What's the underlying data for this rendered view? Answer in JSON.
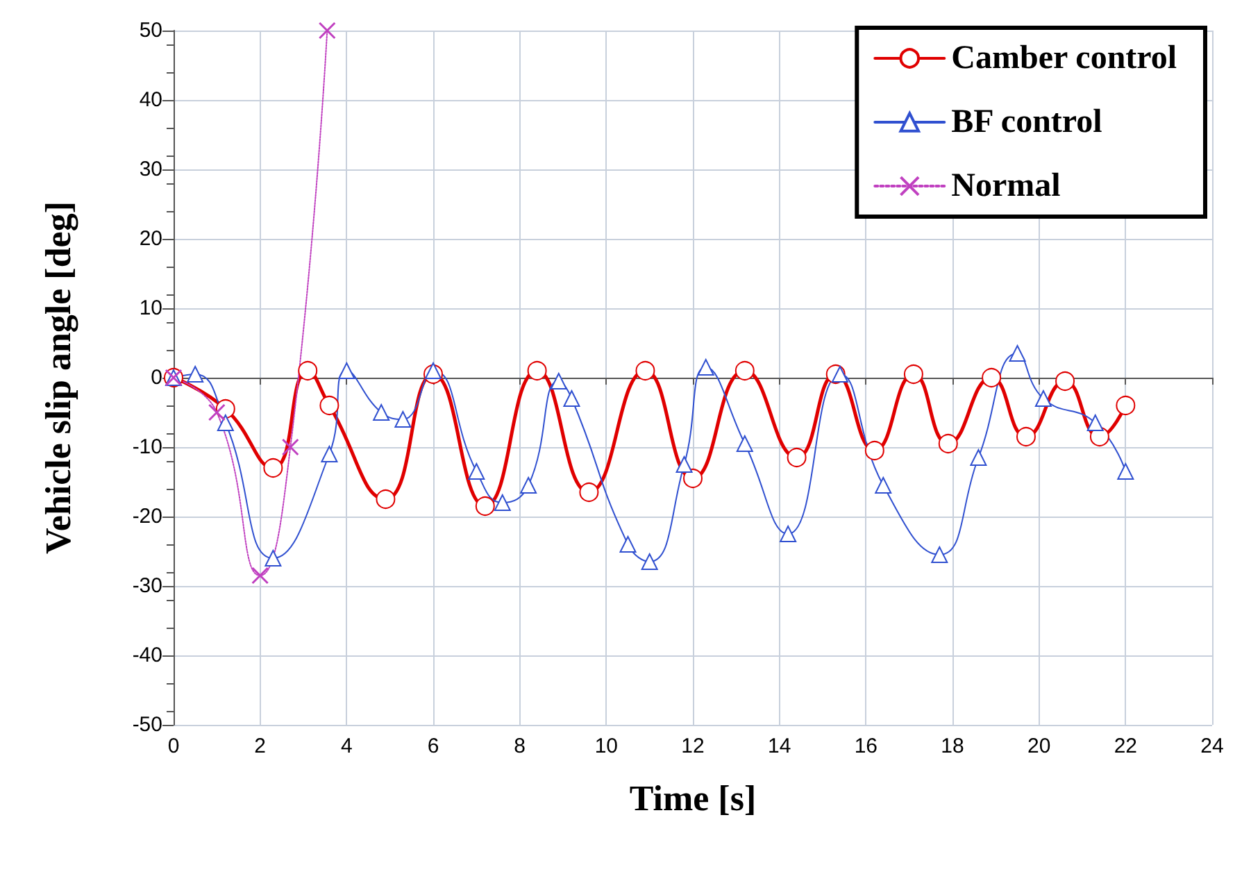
{
  "chart_data": {
    "type": "line",
    "xlabel": "Time [s]",
    "ylabel": "Vehicle slip angle [deg]",
    "xlim": [
      0,
      24
    ],
    "xticks": [
      0,
      2,
      4,
      6,
      8,
      10,
      12,
      14,
      16,
      18,
      20,
      22,
      24
    ],
    "ylim": [
      -50,
      50
    ],
    "yticks": [
      -50,
      -40,
      -30,
      -20,
      -10,
      0,
      10,
      20,
      30,
      40,
      50
    ],
    "grid": true,
    "legend": "top right",
    "series": [
      {
        "name": "Camber control",
        "color": "#e00000",
        "marker": "circle",
        "line_style": "solid",
        "x": [
          0,
          1.2,
          2.3,
          3.1,
          3.6,
          4.9,
          6.0,
          7.2,
          8.4,
          9.6,
          10.9,
          12.0,
          13.2,
          14.4,
          15.3,
          16.2,
          17.1,
          17.9,
          18.9,
          19.7,
          20.6,
          21.4,
          22
        ],
        "values": [
          0,
          -4.5,
          -13,
          1,
          -4,
          -17.5,
          0.5,
          -18.5,
          1,
          -16.5,
          1,
          -14.5,
          1,
          -11.5,
          0.5,
          -10.5,
          0.5,
          -9.5,
          0,
          -8.5,
          -0.5,
          -8.5,
          -4
        ]
      },
      {
        "name": "BF control",
        "color": "#3050d0",
        "marker": "triangle",
        "line_style": "solid",
        "x": [
          0,
          0.5,
          1.2,
          2.3,
          3.6,
          4.0,
          4.8,
          5.3,
          6.0,
          7.0,
          7.6,
          8.2,
          8.9,
          9.2,
          10.5,
          11.0,
          11.8,
          12.3,
          13.2,
          14.2,
          15.4,
          16.4,
          17.7,
          18.6,
          19.5,
          20.1,
          21.3,
          22
        ],
        "values": [
          0,
          0.5,
          -6.5,
          -26,
          -11,
          1,
          -5,
          -6,
          1,
          -13.5,
          -18,
          -15.5,
          -0.5,
          -3,
          -24,
          -26.5,
          -12.5,
          1.5,
          -9.5,
          -22.5,
          0.5,
          -15.5,
          -25.5,
          -11.5,
          3.5,
          -3,
          -6.5,
          -13.5
        ]
      },
      {
        "name": "Normal",
        "color": "#c040c0",
        "marker": "cross",
        "line_style": "dotted",
        "x": [
          0,
          1,
          2.0,
          2.7,
          3.55
        ],
        "values": [
          0,
          -5,
          -28.5,
          -10,
          50
        ]
      }
    ]
  }
}
